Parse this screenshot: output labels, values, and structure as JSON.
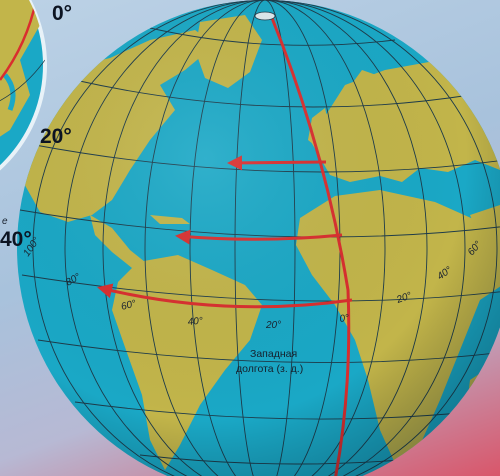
{
  "labels": {
    "top_zero": "0°",
    "lat_20": "20°",
    "lat_40": "40°",
    "inset_partial": "е"
  },
  "longitude_marks": [
    "100°",
    "80°",
    "60°",
    "40°",
    "20°",
    "0°",
    "20°",
    "40°",
    "60°"
  ],
  "caption": {
    "line1": "Западная",
    "line2": "долгота (з. д.)"
  },
  "colors": {
    "ocean": "#1aa8c6",
    "land": "#c2b54a",
    "grid": "#1d3b4a",
    "arrow": "#d92e2e"
  }
}
